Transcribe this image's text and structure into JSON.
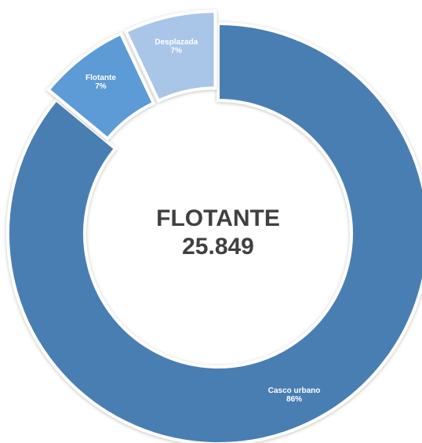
{
  "chart_data": {
    "type": "donut",
    "categories": [
      "Casco urbano",
      "Flotante",
      "Desplazada"
    ],
    "values": [
      86,
      7,
      7
    ],
    "value_labels": [
      "86%",
      "7%",
      "7%"
    ],
    "colors": [
      "#4a7eb3",
      "#5b9bd5",
      "#a9c5e8"
    ],
    "exploded": [
      false,
      true,
      true
    ],
    "center_title": "FLOTANTE",
    "center_value": "25.849"
  }
}
